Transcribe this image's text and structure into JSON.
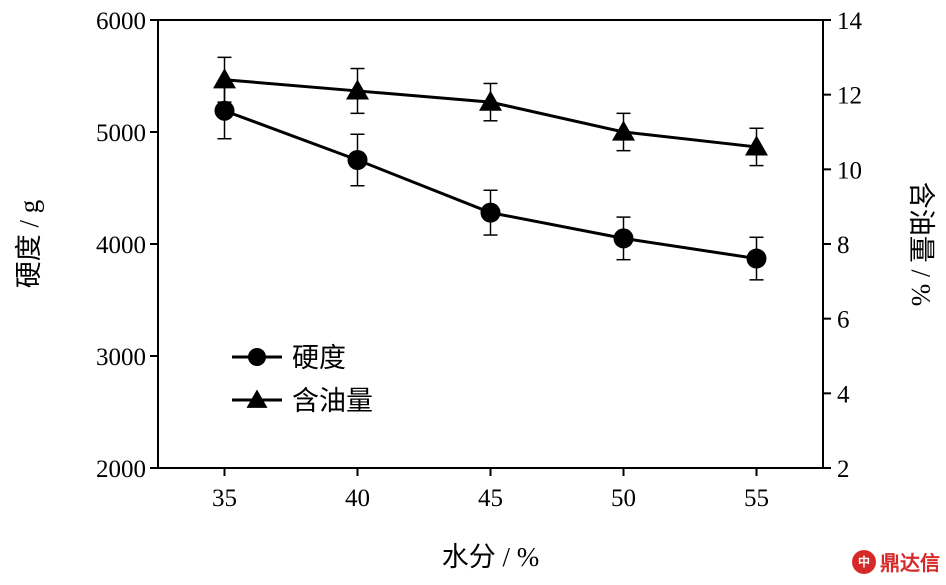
{
  "chart_data": {
    "type": "line",
    "x": [
      35,
      40,
      45,
      50,
      55
    ],
    "xlabel": "水分 / %",
    "xlim": [
      32.5,
      57.5
    ],
    "xticks": [
      "35",
      "40",
      "45",
      "50",
      "55"
    ],
    "ylabel_left": "硬度 / g",
    "ylim_left": [
      2000,
      6000
    ],
    "yticks_left": [
      "2000",
      "3000",
      "4000",
      "5000",
      "6000"
    ],
    "ylabel_right": "含油量 / %",
    "ylim_right": [
      2,
      14
    ],
    "yticks_right": [
      "2",
      "4",
      "6",
      "8",
      "10",
      "12",
      "14"
    ],
    "legend_position": "lower-left",
    "grid": false,
    "series": [
      {
        "name": "硬度",
        "axis": "left",
        "marker": "circle",
        "values": [
          5190,
          4750,
          4280,
          4050,
          3870
        ],
        "error": [
          250,
          230,
          200,
          190,
          190
        ]
      },
      {
        "name": "含油量",
        "axis": "right",
        "marker": "triangle",
        "values": [
          12.4,
          12.1,
          11.8,
          11.0,
          10.6
        ],
        "error": [
          0.6,
          0.6,
          0.5,
          0.5,
          0.5
        ]
      }
    ]
  },
  "watermark": {
    "icon_text": "中",
    "text": "鼎达信"
  },
  "colors": {
    "ink": "#000000",
    "watermark": "#d62a2a"
  }
}
